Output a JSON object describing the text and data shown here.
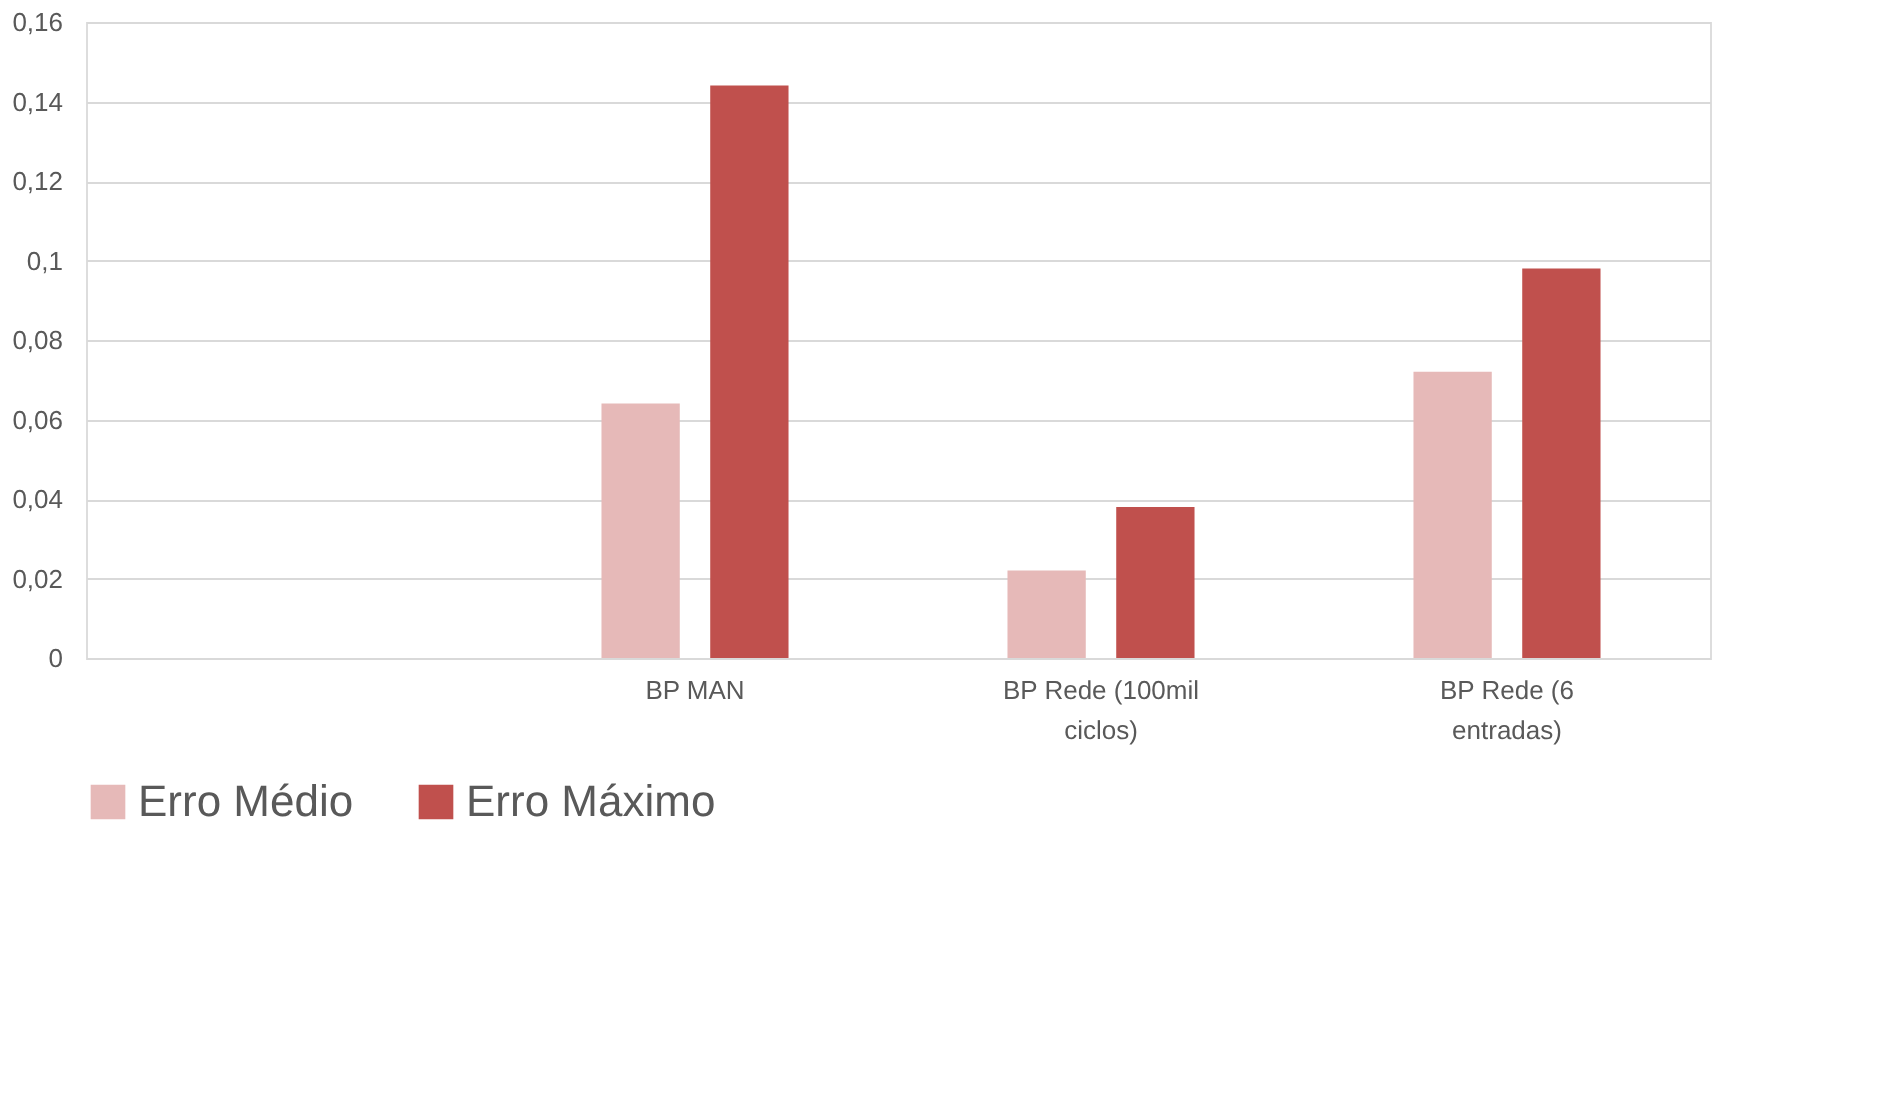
{
  "chart_data": {
    "type": "bar",
    "categories": [
      null,
      "BP MAN",
      "BP Rede (100mil ciclos)",
      "BP Rede (6 entradas)"
    ],
    "series": [
      {
        "name": "Erro Médio",
        "color": "#e6b9b8",
        "values": [
          null,
          0.064,
          0.022,
          0.072
        ]
      },
      {
        "name": "Erro Máximo",
        "color": "#c0504d",
        "values": [
          null,
          0.144,
          0.038,
          0.098
        ]
      }
    ],
    "ylim": [
      0,
      0.16
    ],
    "yticks": [
      {
        "value": 0,
        "label": "0"
      },
      {
        "value": 0.02,
        "label": "0,02"
      },
      {
        "value": 0.04,
        "label": "0,04"
      },
      {
        "value": 0.06,
        "label": "0,06"
      },
      {
        "value": 0.08,
        "label": "0,08"
      },
      {
        "value": 0.1,
        "label": "0,1"
      },
      {
        "value": 0.12,
        "label": "0,12"
      },
      {
        "value": 0.14,
        "label": "0,14"
      },
      {
        "value": 0.16,
        "label": "0,16"
      }
    ],
    "grid": "y",
    "legend": "bottom"
  }
}
